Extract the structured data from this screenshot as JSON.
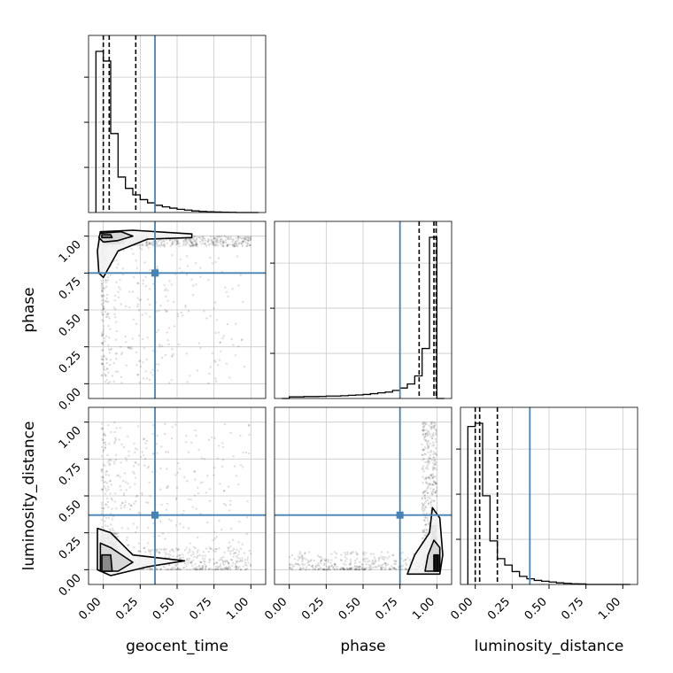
{
  "chart_data": {
    "type": "corner",
    "parameters": [
      "geocent_time",
      "phase",
      "luminosity_distance"
    ],
    "axis_range": [
      -0.1,
      1.1
    ],
    "tick_labels": [
      "0.00",
      "0.25",
      "0.50",
      "0.75",
      "1.00"
    ],
    "tick_values": [
      0,
      0.25,
      0.5,
      0.75,
      1.0
    ],
    "truths": {
      "geocent_time": 0.35,
      "phase": 0.75,
      "luminosity_distance": 0.37
    },
    "truth_color": "#4682b4",
    "quantiles": {
      "geocent_time": [
        0.0,
        0.04,
        0.22
      ],
      "phase": [
        0.88,
        0.98,
        0.995
      ],
      "luminosity_distance": [
        0.0,
        0.03,
        0.15
      ]
    },
    "histograms": {
      "geocent_time": {
        "edges_start": -0.05,
        "bin_width": 0.05,
        "counts": [
          1.0,
          0.94,
          0.49,
          0.22,
          0.15,
          0.11,
          0.08,
          0.06,
          0.045,
          0.035,
          0.027,
          0.02,
          0.015,
          0.01,
          0.007,
          0.005,
          0.003,
          0.002,
          0.001,
          0.0,
          0.0,
          0.0
        ]
      },
      "phase": {
        "edges_start": -0.05,
        "bin_width": 0.05,
        "counts": [
          0.0,
          0.01,
          0.01,
          0.012,
          0.012,
          0.013,
          0.015,
          0.015,
          0.017,
          0.02,
          0.022,
          0.025,
          0.03,
          0.035,
          0.04,
          0.05,
          0.065,
          0.09,
          0.14,
          0.31,
          1.0,
          0.0
        ]
      },
      "luminosity_distance": {
        "edges_start": -0.05,
        "bin_width": 0.05,
        "counts": [
          0.98,
          1.0,
          0.55,
          0.27,
          0.16,
          0.12,
          0.08,
          0.05,
          0.035,
          0.025,
          0.02,
          0.015,
          0.01,
          0.007,
          0.004,
          0.003,
          0.0,
          0.0,
          0.0,
          0.0,
          0.0,
          0.0
        ]
      }
    }
  }
}
